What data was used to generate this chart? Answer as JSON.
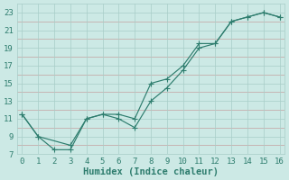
{
  "xlabel": "Humidex (Indice chaleur)",
  "line1_x": [
    0,
    1,
    2,
    3,
    4,
    5,
    6,
    7,
    8,
    9,
    10,
    11,
    12,
    13,
    14,
    15,
    16
  ],
  "line1_y": [
    11.5,
    9.0,
    7.5,
    7.5,
    11.0,
    11.5,
    11.0,
    10.0,
    13.0,
    14.5,
    16.5,
    19.0,
    19.5,
    22.0,
    22.5,
    23.0,
    22.5
  ],
  "line2_x": [
    0,
    1,
    3,
    4,
    5,
    6,
    7,
    8,
    9,
    10,
    11,
    12,
    13,
    14,
    15,
    16
  ],
  "line2_y": [
    11.5,
    9.0,
    8.0,
    11.0,
    11.5,
    11.5,
    11.0,
    15.0,
    15.5,
    17.0,
    19.5,
    19.5,
    22.0,
    22.5,
    23.0,
    22.5
  ],
  "line_color": "#2e7d6e",
  "bg_color": "#cce9e5",
  "major_grid_color": "#a8cdc8",
  "minor_grid_color": "#c4a0a0",
  "xlim": [
    0,
    16
  ],
  "ylim": [
    7,
    24
  ],
  "xticks": [
    0,
    1,
    2,
    3,
    4,
    5,
    6,
    7,
    8,
    9,
    10,
    11,
    12,
    13,
    14,
    15,
    16
  ],
  "yticks": [
    7,
    9,
    11,
    13,
    15,
    17,
    19,
    21,
    23
  ],
  "yticks_minor": [
    8,
    10,
    12,
    14,
    16,
    18,
    20,
    22
  ],
  "tick_fontsize": 6.5,
  "xlabel_fontsize": 7.5
}
